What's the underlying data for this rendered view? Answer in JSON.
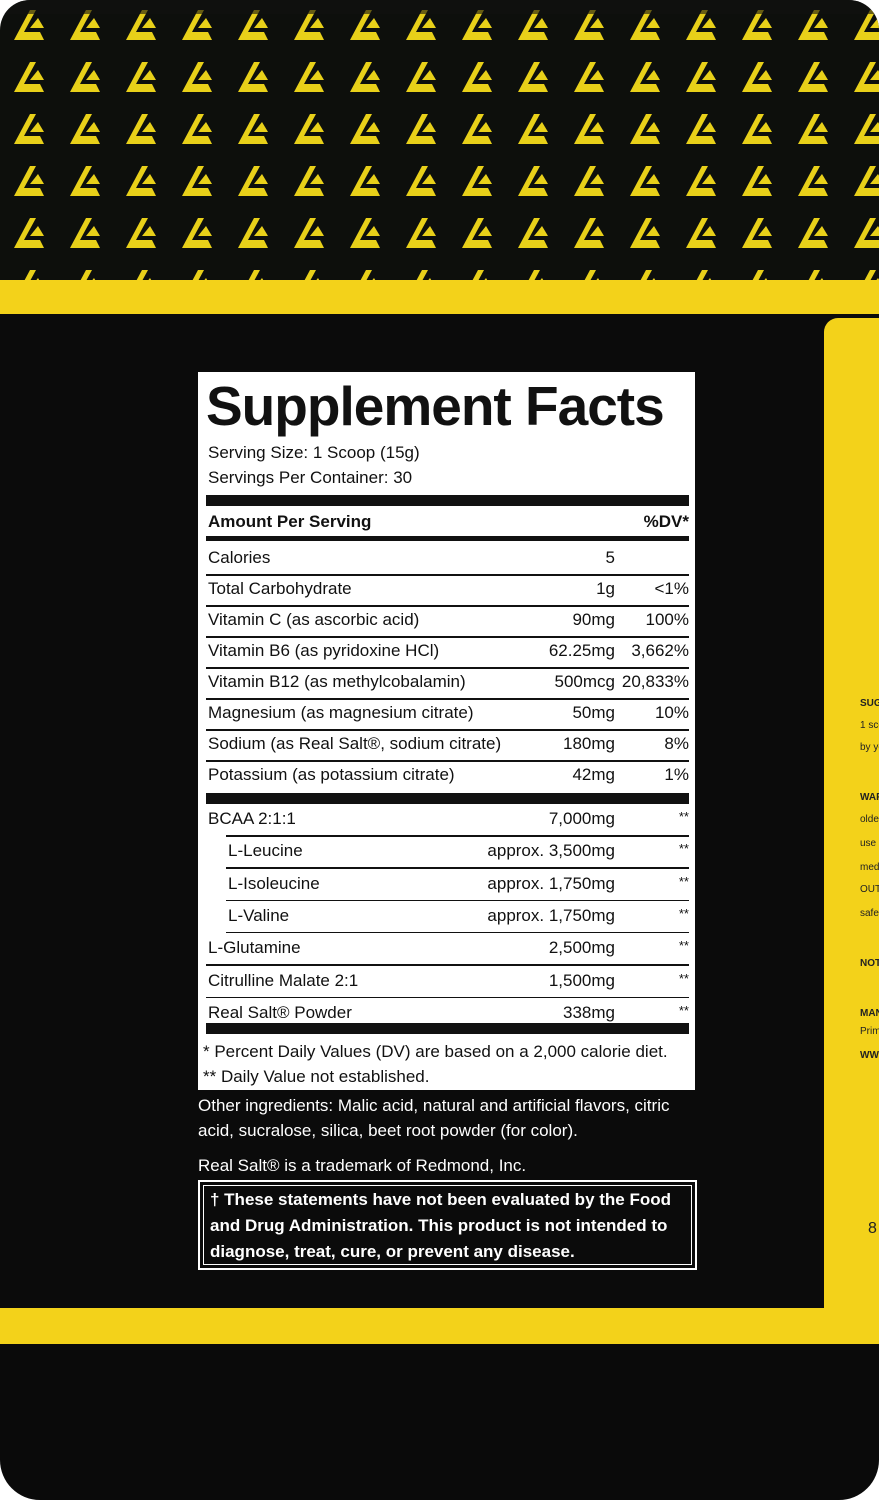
{
  "colors": {
    "yellow": "#f3d21a",
    "black": "#0b0b0b"
  },
  "label": {
    "title": "Supplement Facts",
    "serving_size": "Serving Size: 1 Scoop (15g)",
    "servings_per_container": "Servings Per Container: 30",
    "amount_header": "Amount Per Serving",
    "dv_header": "%DV*",
    "nutrients": [
      {
        "name": "Calories",
        "amount": "5",
        "dv": ""
      },
      {
        "name": "Total Carbohydrate",
        "amount": "1g",
        "dv": "<1%"
      },
      {
        "name": "Vitamin C (as ascorbic acid)",
        "amount": "90mg",
        "dv": "100%"
      },
      {
        "name": "Vitamin B6 (as pyridoxine HCl)",
        "amount": "62.25mg",
        "dv": "3,662%"
      },
      {
        "name": "Vitamin B12 (as methylcobalamin)",
        "amount": "500mcg",
        "dv": "20,833%"
      },
      {
        "name": "Magnesium (as magnesium citrate)",
        "amount": "50mg",
        "dv": "10%"
      },
      {
        "name": "Sodium (as Real Salt®, sodium citrate)",
        "amount": "180mg",
        "dv": "8%"
      },
      {
        "name": "Potassium (as potassium citrate)",
        "amount": "42mg",
        "dv": "1%"
      }
    ],
    "blend": [
      {
        "name": "BCAA 2:1:1",
        "amount": "7,000mg",
        "dv": "**",
        "indent": false
      },
      {
        "name": "L-Leucine",
        "amount": "approx. 3,500mg",
        "dv": "**",
        "indent": true
      },
      {
        "name": "L-Isoleucine",
        "amount": "approx. 1,750mg",
        "dv": "**",
        "indent": true
      },
      {
        "name": "L-Valine",
        "amount": "approx. 1,750mg",
        "dv": "**",
        "indent": true
      },
      {
        "name": "L-Glutamine",
        "amount": "2,500mg",
        "dv": "**",
        "indent": false
      },
      {
        "name": "Citrulline Malate 2:1",
        "amount": "1,500mg",
        "dv": "**",
        "indent": false
      },
      {
        "name": "Real Salt® Powder",
        "amount": "338mg",
        "dv": "**",
        "indent": false
      }
    ],
    "footnote1": "* Percent Daily Values (DV) are based on a 2,000 calorie diet.",
    "footnote2": "** Daily Value not established."
  },
  "other_ingredients": "Other ingredients: Malic acid, natural and artificial flavors, citric acid, sucralose, silica, beet root powder (for color).",
  "trademark": "Real Salt® is a trademark of Redmond, Inc.",
  "disclaimer": "† These statements have not been evaluated by the Food and Drug Administration. This product is not intended to diagnose, treat, cure, or prevent any disease.",
  "side_panel": [
    "SUG",
    "1 sco",
    "by yo",
    "WAR",
    "older",
    "use",
    "medi",
    "OUT",
    "safet",
    "NOT",
    "MANU",
    "Prima",
    "WW",
    "8"
  ]
}
